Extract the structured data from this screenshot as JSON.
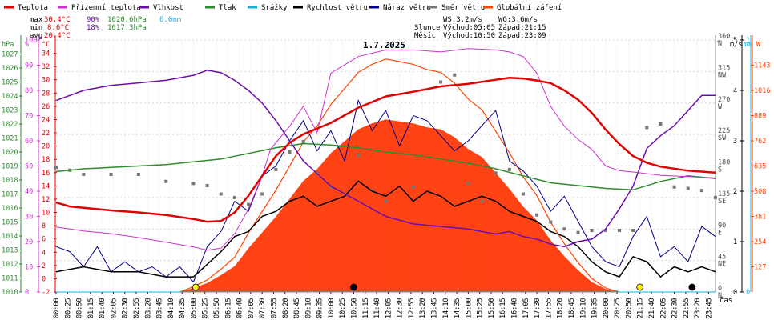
{
  "chart_data": {
    "type": "line",
    "title": "1.7.2025",
    "xlabel": "čas",
    "x_ticks": [
      "00:00",
      "00:25",
      "00:50",
      "01:15",
      "01:40",
      "02:05",
      "02:30",
      "02:55",
      "03:20",
      "03:45",
      "04:10",
      "04:35",
      "05:00",
      "05:25",
      "05:50",
      "06:15",
      "06:40",
      "07:05",
      "07:30",
      "07:55",
      "08:20",
      "08:45",
      "09:10",
      "09:35",
      "10:00",
      "10:25",
      "10:50",
      "11:15",
      "11:40",
      "12:05",
      "12:30",
      "12:55",
      "13:20",
      "13:45",
      "14:10",
      "14:35",
      "15:00",
      "15:25",
      "15:50",
      "16:15",
      "16:40",
      "17:05",
      "17:30",
      "17:55",
      "18:20",
      "18:45",
      "19:10",
      "19:35",
      "20:00",
      "20:25",
      "20:50",
      "21:15",
      "21:40",
      "22:05",
      "22:30",
      "22:55",
      "23:20",
      "23:45"
    ],
    "legend": [
      {
        "name": "Teplota",
        "color": "#e00000"
      },
      {
        "name": "Přízemní teplota",
        "color": "#cc33cc"
      },
      {
        "name": "Vlhkost",
        "color": "#6a0dad"
      },
      {
        "name": "Tlak",
        "color": "#2e8b2e"
      },
      {
        "name": "Srážky",
        "color": "#1ab0d8"
      },
      {
        "name": "Rychlost větru",
        "color": "#000000"
      },
      {
        "name": "Náraz větru",
        "color": "#00008b"
      },
      {
        "name": "Směr větru",
        "color": "#777777"
      },
      {
        "name": "Globální záření",
        "color": "#ff4500"
      }
    ],
    "stats": {
      "max": {
        "label": "max",
        "temp": "30.4°C",
        "hum": "90%",
        "press": "1020.6hPa",
        "rain": "0.0mm"
      },
      "min": {
        "label": "min",
        "temp": "8.6°C",
        "hum": "18%",
        "press": "1017.3hPa"
      },
      "avg": {
        "label": "avg",
        "temp": "20.4°C"
      }
    },
    "wind": {
      "ws": "WS:3.2m/s",
      "wg": "WG:3.6m/s"
    },
    "sun": {
      "label": "Slunce",
      "rise": "Východ:05:05",
      "set": "Západ:21:15"
    },
    "moon": {
      "label": "Měsíc",
      "rise": "Východ:10:50",
      "set": "Západ:23:09"
    },
    "axes": {
      "hpa": {
        "label": "hPa",
        "range": [
          1010,
          1028
        ],
        "ticks": [
          "1010",
          "1011",
          "1012",
          "1013",
          "1014",
          "1015",
          "1016",
          "1017",
          "1018",
          "1019",
          "1020",
          "1021",
          "1022",
          "1023",
          "1024",
          "1025",
          "1026",
          "1027"
        ],
        "color": "#2e8b2e"
      },
      "percent": {
        "label": "%",
        "range": [
          0,
          100
        ],
        "ticks": [
          "0",
          "10",
          "20",
          "30",
          "40",
          "50",
          "60",
          "70",
          "80",
          "90",
          "100"
        ],
        "color": "#cc33cc"
      },
      "celsius": {
        "label": "°C",
        "range": [
          -2,
          36
        ],
        "ticks": [
          "-2",
          "0",
          "2",
          "4",
          "6",
          "8",
          "10",
          "12",
          "14",
          "16",
          "18",
          "20",
          "22",
          "24",
          "26",
          "28",
          "30",
          "32",
          "34"
        ],
        "color": "#e00000"
      },
      "degrees": {
        "label": "°",
        "range": [
          0,
          360
        ],
        "ticks": [
          {
            "v": 0,
            "t": "0",
            "d": "N"
          },
          {
            "v": 45,
            "t": "45",
            "d": "NE"
          },
          {
            "v": 90,
            "t": "90",
            "d": "E"
          },
          {
            "v": 135,
            "t": "135",
            "d": "SE"
          },
          {
            "v": 180,
            "t": "180",
            "d": "S"
          },
          {
            "v": 225,
            "t": "225",
            "d": "SW"
          },
          {
            "v": 270,
            "t": "270",
            "d": "W"
          },
          {
            "v": 315,
            "t": "315",
            "d": "NW"
          },
          {
            "v": 360,
            "t": "360",
            "d": "N"
          }
        ]
      },
      "ms": {
        "label": "m/s",
        "range": [
          0,
          5
        ],
        "ticks": [
          "0",
          "1",
          "2",
          "3",
          "4",
          "5"
        ],
        "color": "#000000"
      },
      "mm": {
        "label": "mm",
        "range": [
          0,
          1
        ],
        "ticks": [
          "0",
          "1"
        ],
        "color": "#1ab0d8"
      },
      "w": {
        "label": "W",
        "range": [
          0,
          1270
        ],
        "ticks": [
          "127",
          "254",
          "381",
          "508",
          "635",
          "762",
          "889",
          "1016",
          "1143"
        ],
        "color": "#ff4500"
      }
    },
    "series": [
      {
        "name": "Teplota",
        "unit": "°C",
        "x": [
          0,
          0.5,
          1,
          2,
          3,
          4,
          5,
          5.5,
          6,
          6.5,
          7,
          7.5,
          8,
          8.5,
          9,
          10,
          11,
          12,
          13,
          14,
          15,
          16,
          16.5,
          17,
          17.5,
          18,
          18.5,
          19,
          19.5,
          20,
          20.5,
          21,
          21.5,
          22,
          22.5,
          23,
          24
        ],
        "values": [
          11.5,
          10.9,
          10.7,
          10.3,
          10,
          9.6,
          9,
          8.6,
          8.7,
          10,
          12.5,
          15.5,
          18.5,
          20.5,
          21.8,
          23.5,
          25.8,
          27.5,
          28.2,
          29,
          29.4,
          30,
          30.3,
          30.2,
          29.9,
          29.5,
          28.4,
          27,
          25,
          22.5,
          20.3,
          18.5,
          17.5,
          16.9,
          16.6,
          16.3,
          16
        ]
      },
      {
        "name": "Přízemní teplota",
        "unit": "°C",
        "x": [
          0,
          1,
          2,
          3,
          4,
          5,
          5.5,
          6,
          6.5,
          7,
          7.5,
          7.8,
          8,
          8.5,
          9,
          9.5,
          10,
          11,
          12,
          13,
          14,
          15,
          16,
          16.5,
          17,
          17.5,
          18,
          18.5,
          19,
          19.5,
          20,
          20.5,
          21,
          22,
          23,
          24
        ],
        "values": [
          7.8,
          7.2,
          6.8,
          6.2,
          5.5,
          4.8,
          4.3,
          4.6,
          6.8,
          10.5,
          15.5,
          19.5,
          20.5,
          23,
          26,
          22,
          31,
          33.5,
          34.5,
          34.5,
          34.2,
          34.7,
          34.5,
          34.2,
          33.5,
          31,
          26,
          23,
          21,
          19.5,
          17,
          16.3,
          16.1,
          15.6,
          15.4,
          15.2
        ]
      },
      {
        "name": "Vlhkost",
        "unit": "%",
        "x": [
          0,
          1,
          2,
          3,
          4,
          5,
          5.5,
          6,
          6.5,
          7,
          7.5,
          8,
          8.5,
          9,
          9.5,
          10,
          11,
          12,
          13,
          14,
          15,
          16,
          16.5,
          17,
          17.5,
          18,
          18.5,
          19,
          19.5,
          20,
          20.5,
          21,
          21.5,
          22,
          22.5,
          23,
          23.5,
          24
        ],
        "values": [
          76,
          80,
          82,
          83,
          84,
          86,
          88,
          87,
          84,
          80,
          75,
          68,
          60,
          52,
          47,
          42,
          36,
          30,
          27,
          26,
          25,
          23,
          24,
          22,
          21,
          19,
          18,
          20,
          21,
          25,
          33,
          42,
          57,
          62,
          66,
          72,
          78,
          78
        ]
      },
      {
        "name": "Tlak",
        "unit": "hPa",
        "x": [
          0,
          1,
          2,
          3,
          4,
          5,
          6,
          7,
          8,
          9,
          10,
          11,
          12,
          13,
          14,
          15,
          16,
          17,
          18,
          19,
          20,
          21,
          22,
          23,
          24
        ],
        "values": [
          1018.6,
          1018.8,
          1018.9,
          1019,
          1019.1,
          1019.3,
          1019.5,
          1019.9,
          1020.3,
          1020.6,
          1020.5,
          1020.3,
          1020,
          1019.8,
          1019.5,
          1019.2,
          1018.8,
          1018.3,
          1017.8,
          1017.6,
          1017.4,
          1017.3,
          1017.9,
          1018.3,
          1018.1
        ]
      },
      {
        "name": "Srážky",
        "unit": "mm",
        "x": [
          0,
          24
        ],
        "values": [
          0,
          0
        ]
      },
      {
        "name": "Rychlost větru",
        "unit": "m/s",
        "x": [
          0,
          1,
          2,
          3,
          4,
          5,
          6,
          6.5,
          7,
          7.5,
          8,
          8.5,
          9,
          9.5,
          10,
          10.5,
          11,
          11.5,
          12,
          12.5,
          13,
          13.5,
          14,
          14.5,
          15,
          15.5,
          16,
          16.5,
          17,
          17.5,
          18,
          18.5,
          19,
          19.5,
          20,
          20.5,
          21,
          21.5,
          22,
          22.5,
          23,
          23.5,
          24
        ],
        "values": [
          0.4,
          0.5,
          0.4,
          0.4,
          0.3,
          0.3,
          0.8,
          1.1,
          1.2,
          1.5,
          1.6,
          1.8,
          1.9,
          1.7,
          1.8,
          1.9,
          2.2,
          2,
          1.9,
          2.1,
          1.8,
          2,
          1.9,
          1.7,
          1.8,
          1.9,
          1.8,
          1.6,
          1.5,
          1.4,
          1.2,
          1.1,
          0.9,
          0.6,
          0.4,
          0.3,
          0.7,
          0.6,
          0.3,
          0.5,
          0.4,
          0.5,
          0.4
        ]
      },
      {
        "name": "Náraz větru",
        "unit": "m/s",
        "x": [
          0,
          0.5,
          1,
          1.5,
          2,
          2.5,
          3,
          3.5,
          4,
          4.5,
          5,
          5.5,
          6,
          6.5,
          7,
          7.5,
          8,
          8.5,
          9,
          9.5,
          10,
          10.5,
          11,
          11.5,
          12,
          12.5,
          13,
          13.5,
          14,
          14.5,
          15,
          15.5,
          16,
          16.5,
          17,
          17.5,
          18,
          18.5,
          19,
          19.5,
          20,
          20.5,
          21,
          21.5,
          22,
          22.5,
          23,
          23.5,
          24
        ],
        "values": [
          0.9,
          0.8,
          0.5,
          0.9,
          0.4,
          0.6,
          0.4,
          0.5,
          0.3,
          0.5,
          0.2,
          0.9,
          1.2,
          1.8,
          1.6,
          2.3,
          2.5,
          3,
          3.4,
          2.8,
          3.2,
          2.6,
          3.8,
          3.2,
          3.6,
          2.9,
          3.5,
          3.4,
          3.1,
          2.8,
          3,
          3.3,
          3.6,
          2.6,
          2.4,
          2.1,
          1.6,
          1.9,
          1.4,
          0.9,
          0.6,
          0.5,
          1.1,
          1.5,
          0.7,
          0.9,
          0.6,
          1.3,
          1.1
        ]
      },
      {
        "name": "Směr větru",
        "unit": "°",
        "x": [
          0,
          0.5,
          1,
          2,
          3,
          4,
          5,
          5.5,
          6,
          6.5,
          7,
          7.5,
          8,
          8.5,
          9,
          9.5,
          10,
          11,
          11.5,
          12,
          13,
          14,
          14.5,
          15,
          15.5,
          16,
          16.5,
          17,
          17.5,
          18,
          18.5,
          19,
          19.5,
          20,
          20.5,
          21,
          21.5,
          22,
          22.5,
          23,
          23.5,
          24
        ],
        "values": [
          178,
          174,
          168,
          168,
          168,
          158,
          155,
          152,
          140,
          135,
          125,
          140,
          175,
          200,
          215,
          170,
          150,
          195,
          145,
          130,
          150,
          300,
          310,
          155,
          130,
          170,
          175,
          140,
          110,
          100,
          90,
          85,
          88,
          88,
          88,
          88,
          235,
          240,
          150,
          148,
          145,
          135
        ]
      },
      {
        "name": "Globální záření",
        "unit": "W/m²",
        "x": [
          4.5,
          5,
          5.5,
          6,
          6.5,
          7,
          7.5,
          8,
          8.5,
          9,
          9.5,
          10,
          10.5,
          11,
          11.5,
          12,
          12.5,
          13,
          13.5,
          14,
          14.5,
          15,
          15.5,
          16,
          16.5,
          17,
          17.5,
          18,
          18.5,
          19,
          19.5,
          20,
          20.5
        ],
        "values": [
          0,
          20,
          45,
          85,
          130,
          220,
          300,
          380,
          470,
          560,
          620,
          700,
          760,
          820,
          850,
          870,
          860,
          850,
          830,
          820,
          780,
          720,
          680,
          600,
          520,
          430,
          360,
          260,
          180,
          110,
          50,
          15,
          0
        ]
      }
    ],
    "markers": [
      {
        "label": "☀ východ",
        "x": 5.08
      },
      {
        "label": "☀ západ",
        "x": 21.25
      },
      {
        "label": "☾ východ",
        "x": 10.83
      },
      {
        "label": "☾ západ",
        "x": 23.15
      }
    ],
    "grid": true
  }
}
